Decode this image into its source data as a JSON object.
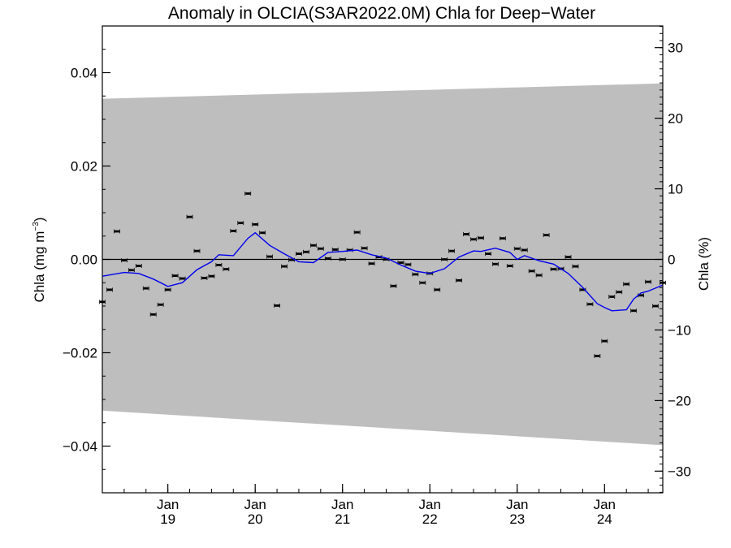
{
  "chart_data": {
    "type": "scatter",
    "title": "Anomaly in OLCIA(S3AR2022.0M) Chla for Deep−Water",
    "ylabel_left": {
      "main": "Chla (mg m",
      "sup": "−3",
      "close": ")"
    },
    "ylabel_right": "Chla (%)",
    "ylim_left": [
      -0.05,
      0.05
    ],
    "ylim_right": [
      -33.07,
      33.07
    ],
    "xlim": [
      "2018-04",
      "2024-09"
    ],
    "y_ticks_left": [
      {
        "value": 0.04,
        "label": "0.04"
      },
      {
        "value": 0.02,
        "label": "0.02"
      },
      {
        "value": 0.0,
        "label": "0.00"
      },
      {
        "value": -0.02,
        "label": "−0.02"
      },
      {
        "value": -0.04,
        "label": "−0.04"
      }
    ],
    "y_ticks_right": [
      {
        "value": 30,
        "label": "30"
      },
      {
        "value": 20,
        "label": "20"
      },
      {
        "value": 10,
        "label": "10"
      },
      {
        "value": 0,
        "label": "0"
      },
      {
        "value": -10,
        "label": "−10"
      },
      {
        "value": -20,
        "label": "−20"
      },
      {
        "value": -30,
        "label": "−30"
      }
    ],
    "x_ticks": [
      {
        "date": "2019-01",
        "month": "Jan",
        "year": "19"
      },
      {
        "date": "2020-01",
        "month": "Jan",
        "year": "20"
      },
      {
        "date": "2021-01",
        "month": "Jan",
        "year": "21"
      },
      {
        "date": "2022-01",
        "month": "Jan",
        "year": "22"
      },
      {
        "date": "2023-01",
        "month": "Jan",
        "year": "23"
      },
      {
        "date": "2024-01",
        "month": "Jan",
        "year": "24"
      }
    ],
    "zero_line": 0,
    "envelope": {
      "color": "#bebebe",
      "start": {
        "date": "2018-04",
        "upper": 0.0344,
        "lower": -0.0324
      },
      "end": {
        "date": "2024-09",
        "upper": 0.0377,
        "lower": -0.0398
      }
    },
    "series": [
      {
        "kind": "monthly_anomaly",
        "marker": "errorbar",
        "color": "#000000",
        "x": [
          "2018-04",
          "2018-05",
          "2018-06",
          "2018-07",
          "2018-08",
          "2018-09",
          "2018-10",
          "2018-11",
          "2018-12",
          "2019-01",
          "2019-02",
          "2019-03",
          "2019-04",
          "2019-05",
          "2019-06",
          "2019-07",
          "2019-08",
          "2019-09",
          "2019-10",
          "2019-11",
          "2019-12",
          "2020-01",
          "2020-02",
          "2020-03",
          "2020-04",
          "2020-05",
          "2020-06",
          "2020-07",
          "2020-08",
          "2020-09",
          "2020-10",
          "2020-11",
          "2020-12",
          "2021-01",
          "2021-02",
          "2021-03",
          "2021-04",
          "2021-05",
          "2021-06",
          "2021-07",
          "2021-08",
          "2021-09",
          "2021-10",
          "2021-11",
          "2021-12",
          "2022-01",
          "2022-02",
          "2022-03",
          "2022-04",
          "2022-05",
          "2022-06",
          "2022-07",
          "2022-08",
          "2022-09",
          "2022-10",
          "2022-11",
          "2022-12",
          "2023-01",
          "2023-02",
          "2023-03",
          "2023-04",
          "2023-05",
          "2023-06",
          "2023-07",
          "2023-08",
          "2023-09",
          "2023-10",
          "2023-11",
          "2023-12",
          "2024-01",
          "2024-02",
          "2024-03",
          "2024-04",
          "2024-05",
          "2024-06",
          "2024-07",
          "2024-08",
          "2024-09"
        ],
        "y": [
          -0.0091,
          -0.0065,
          0.006,
          -0.0002,
          -0.0023,
          -0.0014,
          -0.0062,
          -0.0118,
          -0.0097,
          -0.0065,
          -0.0035,
          -0.0041,
          0.0091,
          0.0018,
          -0.004,
          -0.0036,
          -0.0012,
          -0.0021,
          0.0061,
          0.0078,
          0.0141,
          0.0075,
          0.0057,
          0.0006,
          -0.0099,
          -0.0015,
          -0.0001,
          0.0012,
          0.0016,
          0.003,
          0.0023,
          0.0002,
          0.0021,
          0.0,
          0.002,
          0.0058,
          0.0024,
          -0.0009,
          0.0005,
          0.0,
          -0.0057,
          -0.0007,
          -0.0011,
          -0.0032,
          -0.005,
          -0.003,
          -0.0065,
          0.0,
          0.0018,
          -0.0045,
          0.0054,
          0.0043,
          0.0046,
          0.0012,
          -0.001,
          0.0045,
          -0.0014,
          0.0023,
          0.002,
          -0.0025,
          -0.0034,
          0.0052,
          -0.0021,
          -0.002,
          0.0005,
          -0.0015,
          -0.0065,
          -0.0096,
          -0.0207,
          -0.0175,
          -0.008,
          -0.007,
          -0.0053,
          -0.011,
          -0.0077,
          -0.0048,
          -0.01,
          -0.005
        ]
      },
      {
        "kind": "running_mean",
        "marker": "line",
        "color": "#0000ee",
        "x": [
          "2018-04",
          "2018-07",
          "2018-09",
          "2018-11",
          "2019-01",
          "2019-03",
          "2019-05",
          "2019-07",
          "2019-08",
          "2019-10",
          "2019-12",
          "2020-01",
          "2020-03",
          "2020-05",
          "2020-07",
          "2020-09",
          "2020-11",
          "2021-01",
          "2021-03",
          "2021-05",
          "2021-07",
          "2021-09",
          "2021-11",
          "2022-01",
          "2022-03",
          "2022-05",
          "2022-07",
          "2022-08",
          "2022-10",
          "2022-12",
          "2023-01",
          "2023-02",
          "2023-04",
          "2023-06",
          "2023-08",
          "2023-10",
          "2023-12",
          "2024-01",
          "2024-02",
          "2024-04",
          "2024-05",
          "2024-06",
          "2024-07",
          "2024-09"
        ],
        "y": [
          -0.0036,
          -0.0028,
          -0.003,
          -0.0042,
          -0.0058,
          -0.005,
          -0.0022,
          -0.0005,
          0.001,
          0.0008,
          0.0045,
          0.0057,
          0.003,
          0.0012,
          -0.0005,
          -0.0007,
          0.0015,
          0.0017,
          0.002,
          0.001,
          0.0003,
          -0.0012,
          -0.0025,
          -0.003,
          -0.002,
          0.0005,
          0.0018,
          0.0017,
          0.0024,
          0.0015,
          0.0,
          0.0008,
          -0.0003,
          -0.001,
          -0.003,
          -0.006,
          -0.0095,
          -0.0103,
          -0.011,
          -0.0108,
          -0.0085,
          -0.0072,
          -0.0068,
          -0.0055
        ]
      }
    ]
  }
}
